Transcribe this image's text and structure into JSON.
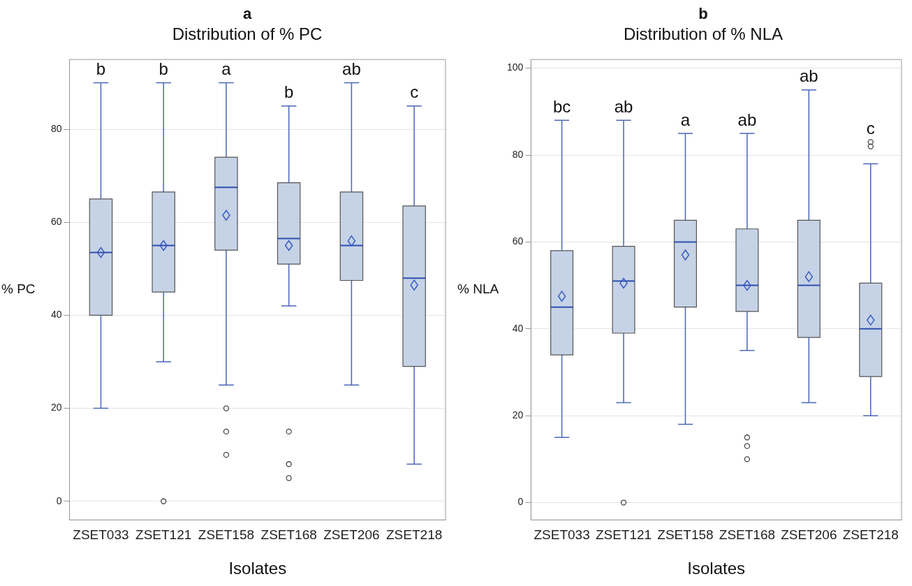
{
  "chart_data": [
    {
      "type": "box",
      "title": "a",
      "subtitle": "Distribution of % PC",
      "xlabel": "Isolates",
      "ylabel": "% PC",
      "categories": [
        "ZSET033",
        "ZSET121",
        "ZSET158",
        "ZSET168",
        "ZSET206",
        "ZSET218"
      ],
      "ylim": [
        -4,
        95
      ],
      "yticks": [
        0,
        20,
        40,
        60,
        80
      ],
      "grid": "y",
      "legend": false,
      "marker": "diamond",
      "series": [
        {
          "color": "#c6d3e6",
          "boxes": [
            {
              "low": 20,
              "q1": 40,
              "median": 53.5,
              "q3": 65,
              "high": 90,
              "mean": 53.5
            },
            {
              "low": 30,
              "q1": 45,
              "median": 55,
              "q3": 66.5,
              "high": 90,
              "mean": 55,
              "outliers": [
                0
              ]
            },
            {
              "low": 25,
              "q1": 54,
              "median": 67.5,
              "q3": 74,
              "high": 90,
              "mean": 61.5,
              "outliers": [
                20,
                15,
                10
              ]
            },
            {
              "low": 42,
              "q1": 51,
              "median": 56.5,
              "q3": 68.5,
              "high": 85,
              "mean": 55,
              "outliers": [
                15,
                8,
                5
              ]
            },
            {
              "low": 25,
              "q1": 47.5,
              "median": 55,
              "q3": 66.5,
              "high": 90,
              "mean": 56
            },
            {
              "low": 8,
              "q1": 29,
              "median": 48,
              "q3": 63.5,
              "high": 85,
              "mean": 46.5
            }
          ]
        }
      ],
      "annotations": [
        "b",
        "b",
        "a",
        "b",
        "ab",
        "c"
      ]
    },
    {
      "type": "box",
      "title": "b",
      "subtitle": "Distribution of % NLA",
      "xlabel": "Isolates",
      "ylabel": "% NLA",
      "categories": [
        "ZSET033",
        "ZSET121",
        "ZSET158",
        "ZSET168",
        "ZSET206",
        "ZSET218"
      ],
      "ylim": [
        -4,
        102
      ],
      "yticks": [
        0,
        20,
        40,
        60,
        80,
        100
      ],
      "grid": "y",
      "legend": false,
      "marker": "diamond",
      "series": [
        {
          "color": "#c6d3e6",
          "boxes": [
            {
              "low": 15,
              "q1": 34,
              "median": 45,
              "q3": 58,
              "high": 88,
              "mean": 47.5
            },
            {
              "low": 23,
              "q1": 39,
              "median": 51,
              "q3": 59,
              "high": 88,
              "mean": 50.5,
              "outliers": [
                0
              ]
            },
            {
              "low": 18,
              "q1": 45,
              "median": 60,
              "q3": 65,
              "high": 85,
              "mean": 57
            },
            {
              "low": 35,
              "q1": 44,
              "median": 50,
              "q3": 63,
              "high": 85,
              "mean": 50,
              "outliers": [
                15,
                13,
                10
              ]
            },
            {
              "low": 23,
              "q1": 38,
              "median": 50,
              "q3": 65,
              "high": 95,
              "mean": 52
            },
            {
              "low": 20,
              "q1": 29,
              "median": 40,
              "q3": 50.5,
              "high": 78,
              "mean": 42,
              "outliers": [
                83,
                82
              ]
            }
          ]
        }
      ],
      "annotations": [
        "bc",
        "ab",
        "a",
        "ab",
        "ab",
        "c"
      ]
    }
  ]
}
